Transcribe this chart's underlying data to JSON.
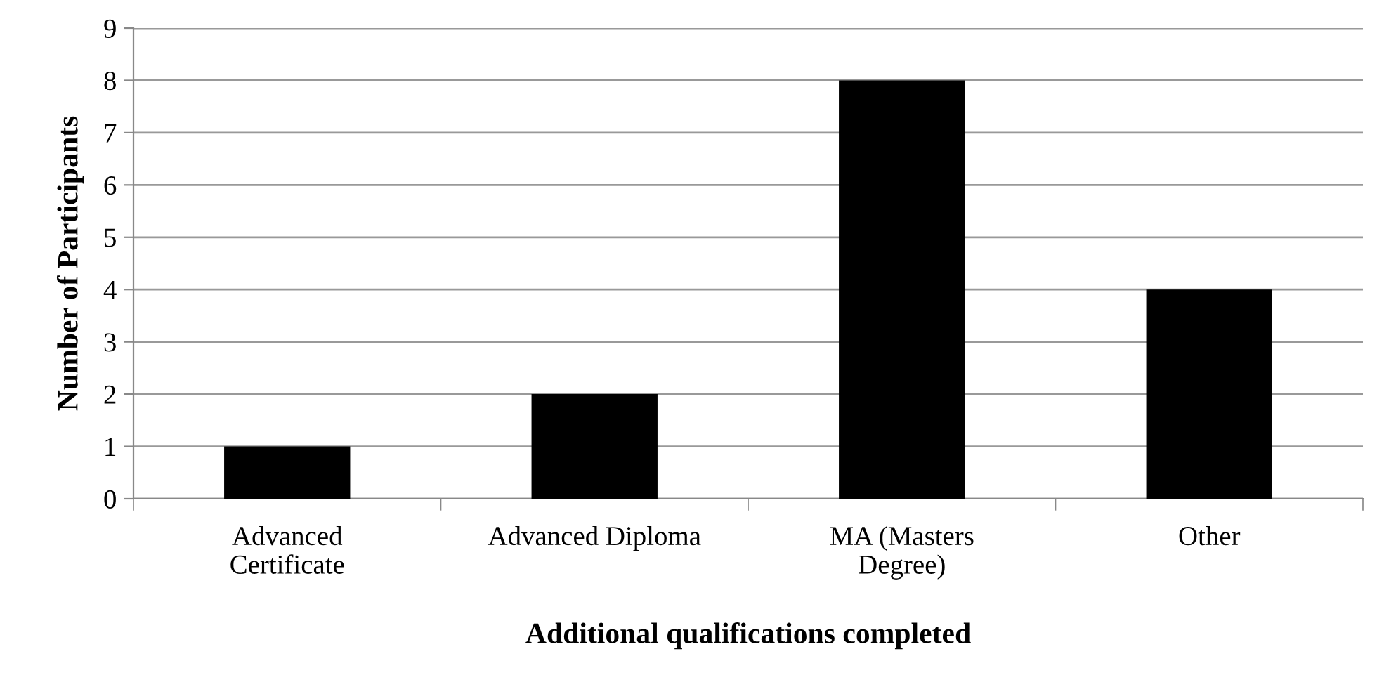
{
  "chart_data": {
    "type": "bar",
    "xlabel": "Additional qualifications completed",
    "ylabel": "Number of Participants",
    "categories": [
      "Advanced\nCertificate",
      "Advanced Diploma",
      "MA (Masters\nDegree)",
      "Other"
    ],
    "values": [
      1,
      2,
      8,
      4
    ],
    "color": "#000000",
    "ylim": [
      0,
      9
    ],
    "yticks": [
      0,
      1,
      2,
      3,
      4,
      5,
      6,
      7,
      8,
      9
    ],
    "grid": "y"
  }
}
